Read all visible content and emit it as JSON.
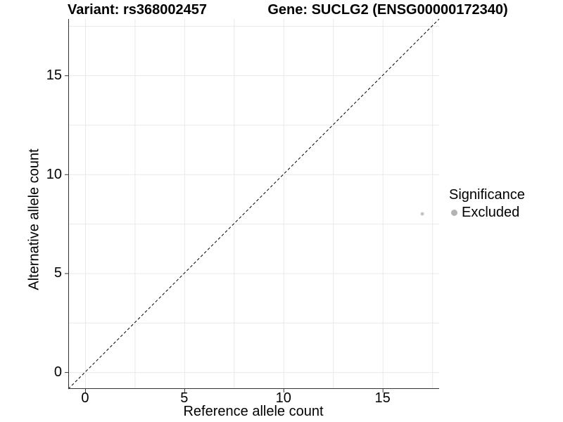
{
  "titles": {
    "variant": "Variant: rs368002457",
    "gene": "Gene: SUCLG2 (ENSG00000172340)"
  },
  "chart_data": {
    "type": "scatter",
    "title_left": "Variant: rs368002457",
    "title_right": "Gene: SUCLG2 (ENSG00000172340)",
    "xlabel": "Reference allele count",
    "ylabel": "Alternative allele count",
    "xlim": [
      -0.85,
      17.85
    ],
    "ylim": [
      -0.85,
      17.85
    ],
    "xticks": [
      0,
      5,
      10,
      15
    ],
    "yticks": [
      0,
      5,
      10,
      15
    ],
    "grid": true,
    "grid_step": 2.5,
    "grid_min": 0,
    "grid_max": 17.5,
    "points": [
      {
        "x": 17,
        "y": 8,
        "series": "Excluded"
      }
    ],
    "reference_line": {
      "type": "identity",
      "slope": 1,
      "intercept": 0,
      "style": "dashed"
    },
    "legend": {
      "title": "Significance",
      "position": "right",
      "items": [
        {
          "label": "Excluded",
          "color": "#b3b3b3"
        }
      ]
    },
    "style": {
      "point_color": "#c6c6c6",
      "point_radius": 2.5,
      "grid_color": "#e9e9e9",
      "axis_color": "#333333",
      "line_color": "#000000",
      "background": "#ffffff"
    }
  }
}
